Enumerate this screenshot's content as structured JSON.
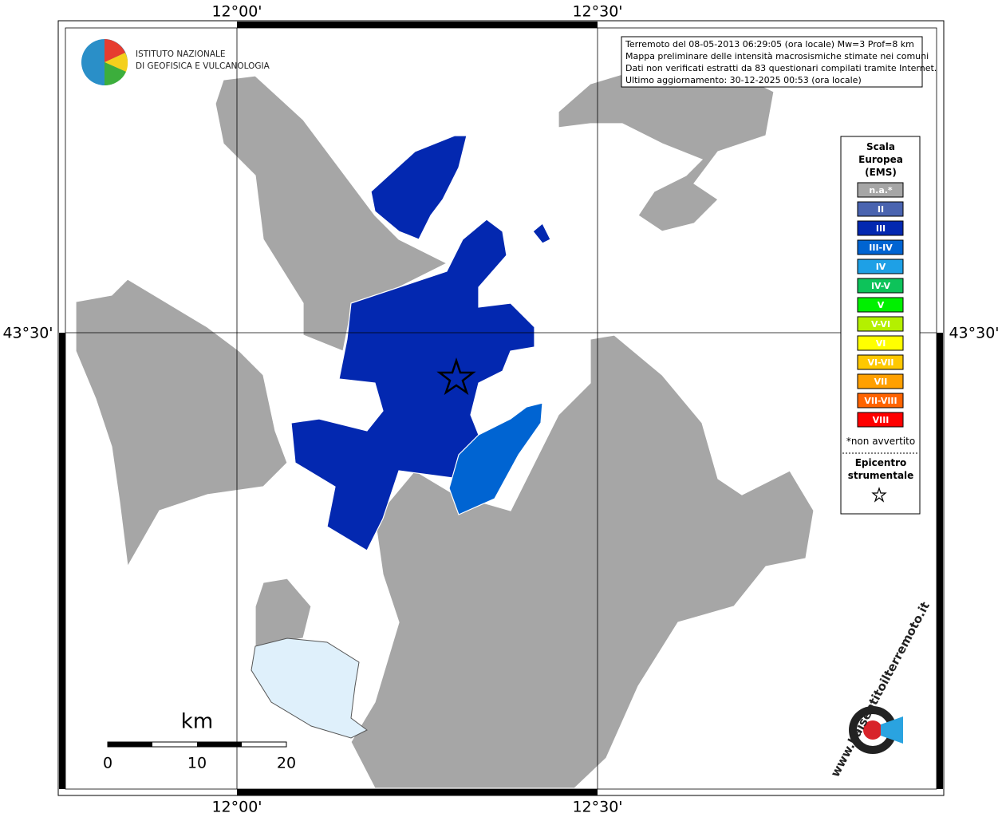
{
  "map": {
    "top_labels": [
      "12°00'",
      "12°30'"
    ],
    "bottom_labels": [
      "12°00'",
      "12°30'"
    ],
    "left_label": "43°30'",
    "right_label": "43°30'",
    "info": [
      "Terremoto del 08-05-2013 06:29:05 (ora locale) Mw=3 Prof=8 km",
      "Mappa preliminare delle intensità macrosismiche stimate nei comuni",
      "Dati non verificati estratti da 83 questionari compilati tramite Internet.",
      "Ultimo aggiornamento: 30-12-2025 00:53 (ora locale)"
    ],
    "institute": [
      "ISTITUTO NAZIONALE",
      "DI GEOFISICA E VULCANOLOGIA"
    ],
    "legend": {
      "title": [
        "Scala",
        "Europea",
        "(EMS)"
      ],
      "items": [
        {
          "label": "n.a.*",
          "color": "#a6a6a6"
        },
        {
          "label": "II",
          "color": "#4a64b0"
        },
        {
          "label": "III",
          "color": "#0328b0"
        },
        {
          "label": "III-IV",
          "color": "#0064d2"
        },
        {
          "label": "IV",
          "color": "#1ea0e6"
        },
        {
          "label": "IV-V",
          "color": "#0dc35a"
        },
        {
          "label": "V",
          "color": "#00f000"
        },
        {
          "label": "V-VI",
          "color": "#b4f000"
        },
        {
          "label": "VI",
          "color": "#ffff00"
        },
        {
          "label": "VI-VII",
          "color": "#ffc800"
        },
        {
          "label": "VII",
          "color": "#ffa000"
        },
        {
          "label": "VII-VIII",
          "color": "#ff6400"
        },
        {
          "label": "VIII",
          "color": "#ff0000"
        }
      ],
      "note": "*non avvertito",
      "epicenter": [
        "Epicentro",
        "strumentale"
      ]
    },
    "scale": {
      "unit": "km",
      "labels": [
        "0",
        "10",
        "20"
      ]
    },
    "site": "www.haisentitoilterremoto.it"
  }
}
